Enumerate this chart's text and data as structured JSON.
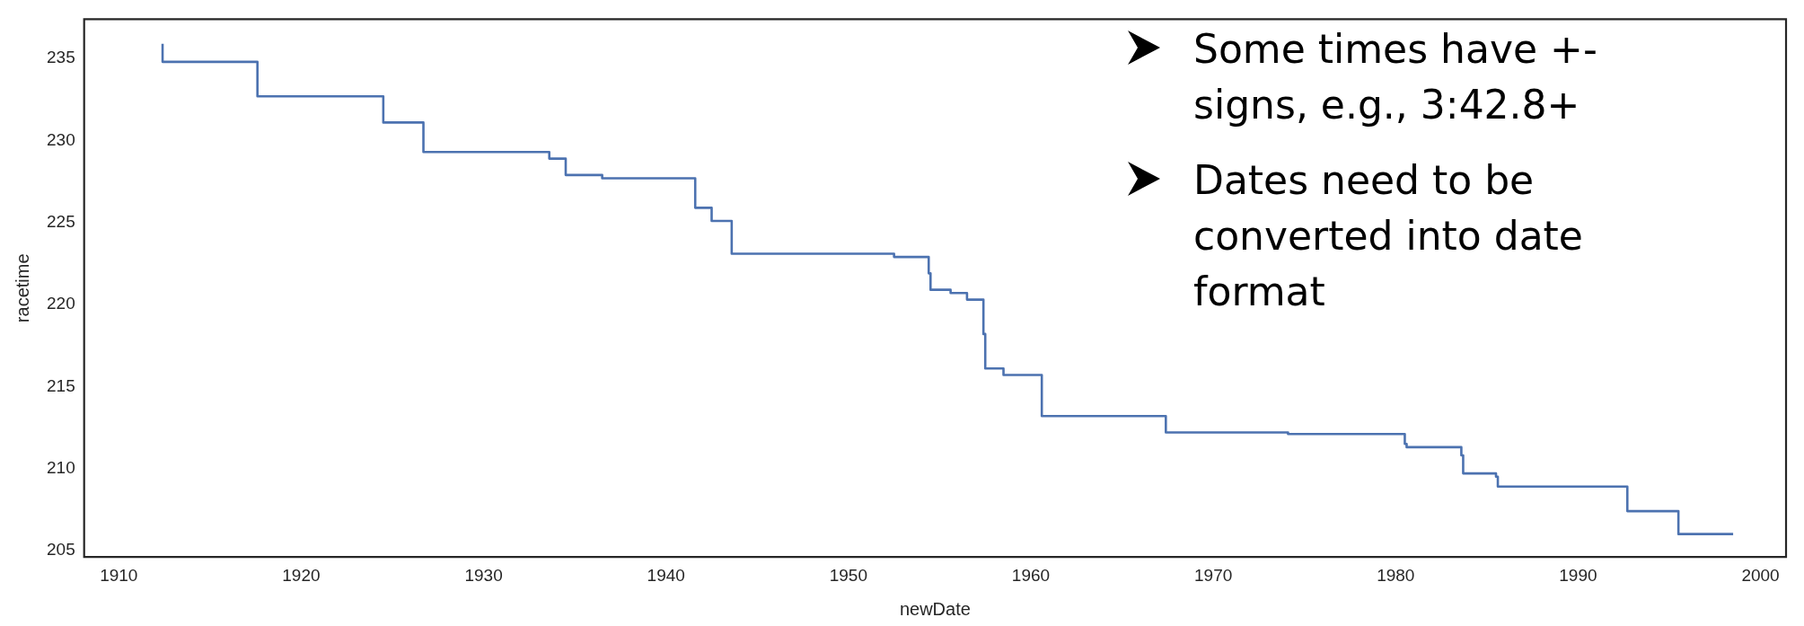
{
  "chart_data": {
    "type": "step",
    "xlabel": "newDate",
    "ylabel": "racetime",
    "x": [
      1912.4,
      1912.4,
      1917.6,
      1924.5,
      1926.7,
      1933.6,
      1934.5,
      1936.5,
      1941.6,
      1942.5,
      1943.6,
      1952.5,
      1954.4,
      1954.5,
      1955.6,
      1956.5,
      1957.4,
      1957.5,
      1958.5,
      1960.6,
      1967.4,
      1974.1,
      1980.5,
      1980.6,
      1983.6,
      1983.7,
      1985.5,
      1985.6,
      1992.7,
      1995.5,
      1998.5
    ],
    "series": [
      {
        "color": "#4c72b0",
        "values": [
          235.9,
          234.8,
          232.7,
          231.1,
          229.3,
          228.9,
          227.9,
          227.7,
          225.9,
          225.1,
          223.1,
          222.9,
          221.9,
          220.9,
          220.7,
          220.3,
          218.2,
          216.1,
          215.7,
          213.2,
          212.2,
          212.1,
          211.5,
          211.3,
          210.8,
          209.7,
          209.5,
          208.9,
          207.4,
          206.0,
          206.0
        ]
      }
    ],
    "xlim": [
      1908.1,
      2001.4
    ],
    "xticks": [
      1910,
      1920,
      1930,
      1940,
      1950,
      1960,
      1970,
      1980,
      1990,
      2000
    ],
    "ylim": [
      204.6,
      237.4
    ],
    "yticks": [
      205,
      210,
      215,
      220,
      225,
      230,
      235
    ],
    "grid": false,
    "legend": false,
    "annotations": [
      "Some times have +- signs, e.g., 3:42.8+",
      "Dates need to be converted into date format"
    ]
  }
}
